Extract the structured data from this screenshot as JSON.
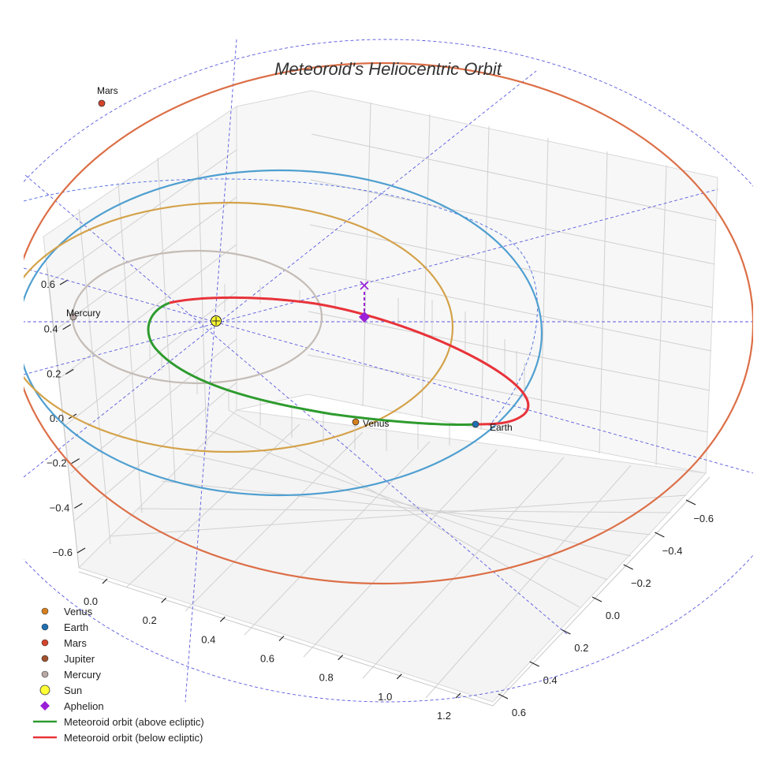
{
  "chart_data": {
    "type": "scatter",
    "projection": "3d",
    "title": "Meteoroid's Heliocentric Orbit",
    "axes": {
      "x": {
        "ticks": [
          "0.0",
          "0.2",
          "0.4",
          "0.6",
          "0.8",
          "1.0",
          "1.2"
        ]
      },
      "y": {
        "ticks": [
          "−0.6",
          "−0.4",
          "−0.2",
          "0.0",
          "0.2",
          "0.4",
          "0.6"
        ]
      },
      "z": {
        "ticks": [
          "−0.6",
          "−0.4",
          "−0.2",
          "0.0",
          "0.2",
          "0.4",
          "0.6"
        ]
      }
    },
    "planets": [
      {
        "name": "Mercury",
        "label": "Mercury",
        "color": "#bfb6b0"
      },
      {
        "name": "Venus",
        "label": "Venus",
        "color": "#d4a24a"
      },
      {
        "name": "Earth",
        "label": "Earth",
        "color": "#4f9fd0"
      },
      {
        "name": "Mars",
        "label": "Mars",
        "color": "#dc6f47"
      }
    ],
    "meteoroid_orbit": {
      "above_ecliptic_color": "#2e9b2e",
      "below_ecliptic_color": "#e8333a"
    },
    "sun_color": "#ffff33",
    "aphelion_color": "#9a1fd6",
    "legend": {
      "placement": "bottom-left",
      "entries": [
        {
          "label": "Venus",
          "marker": "dot",
          "color": "#d67f1e"
        },
        {
          "label": "Earth",
          "marker": "dot",
          "color": "#1f6fb2"
        },
        {
          "label": "Mars",
          "marker": "dot",
          "color": "#d4442a"
        },
        {
          "label": "Jupiter",
          "marker": "dot",
          "color": "#a0522d"
        },
        {
          "label": "Mercury",
          "marker": "dot",
          "color": "#b9a9a4"
        },
        {
          "label": "Sun",
          "marker": "big-dot",
          "color": "#ffff33"
        },
        {
          "label": "Aphelion",
          "marker": "diamond",
          "color": "#9a1fd6"
        },
        {
          "label": "Meteoroid orbit (above ecliptic)",
          "marker": "line",
          "color": "#2e9b2e"
        },
        {
          "label": "Meteoroid orbit (below ecliptic)",
          "marker": "line",
          "color": "#e8333a"
        }
      ]
    }
  }
}
